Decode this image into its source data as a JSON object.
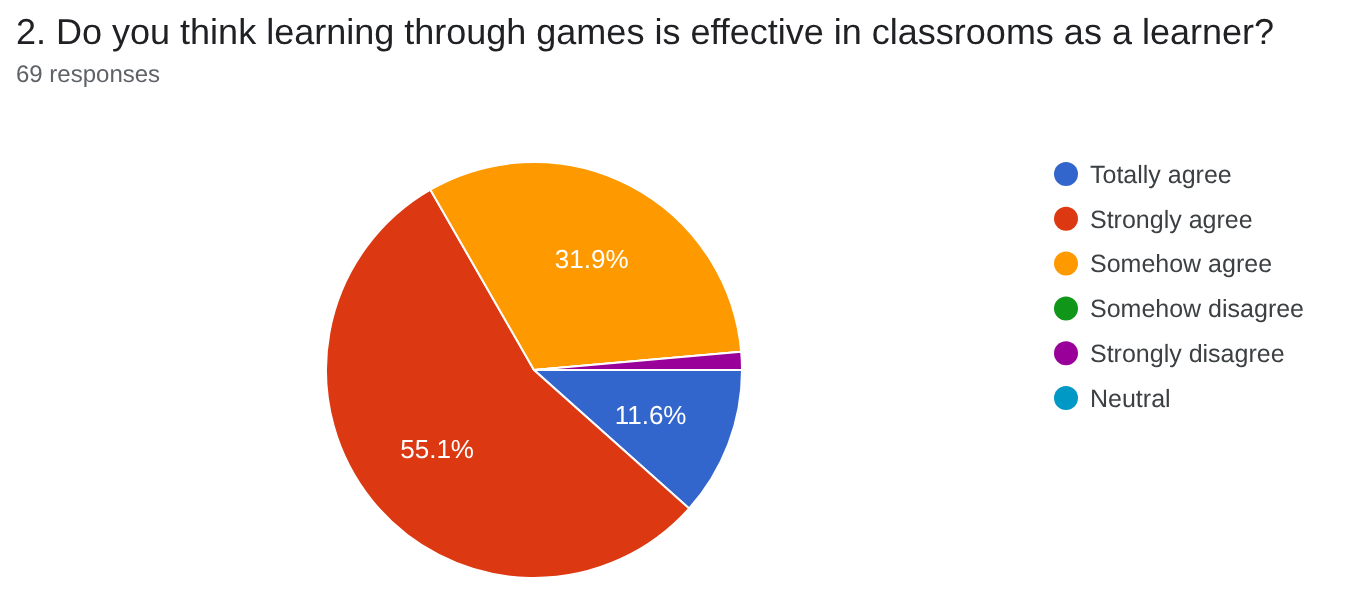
{
  "chart_data": {
    "type": "pie",
    "title": "2. Do you think learning through games is effective in classrooms as a learner?",
    "subtitle": "69 responses",
    "categories": [
      "Totally agree",
      "Strongly agree",
      "Somehow agree",
      "Somehow disagree",
      "Strongly disagree",
      "Neutral"
    ],
    "values": [
      11.6,
      55.1,
      31.9,
      0,
      1.4,
      0
    ],
    "colors": [
      "#3366cc",
      "#dc3912",
      "#ff9900",
      "#109618",
      "#990099",
      "#0099c6"
    ],
    "value_labels": [
      "11.6%",
      "55.1%",
      "31.9%",
      null,
      null,
      null
    ],
    "legend": "right"
  }
}
